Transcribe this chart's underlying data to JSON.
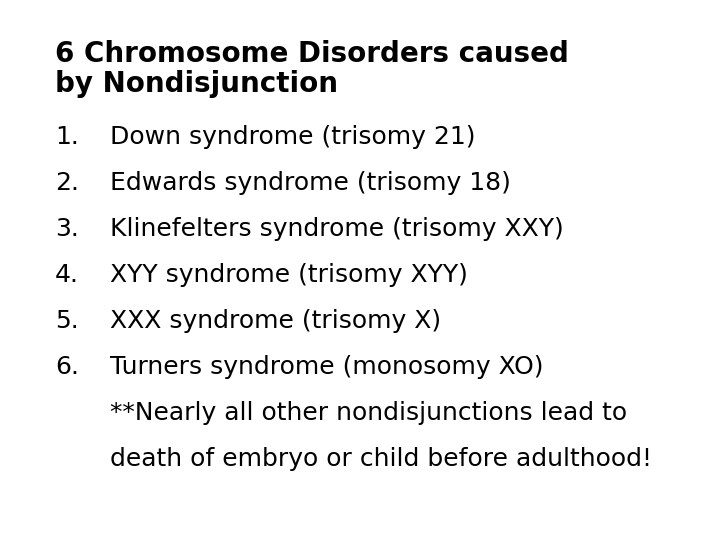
{
  "background_color": "#ffffff",
  "title_line1": "6 Chromosome Disorders caused",
  "title_line2": "by Nondisjunction",
  "title_fontsize": 20,
  "title_fontweight": "bold",
  "items": [
    "Down syndrome (trisomy 21)",
    "Edwards syndrome (trisomy 18)",
    "Klinefelters syndrome (trisomy XXY)",
    "XYY syndrome (trisomy XYY)",
    "XXX syndrome (trisomy X)",
    "Turners syndrome (monosomy XO)"
  ],
  "footnote_line1": "**Nearly all other nondisjunctions lead to",
  "footnote_line2": "death of embryo or child before adulthood!",
  "item_fontsize": 18,
  "footnote_fontsize": 18,
  "text_color": "#000000",
  "font_family": "DejaVu Sans"
}
